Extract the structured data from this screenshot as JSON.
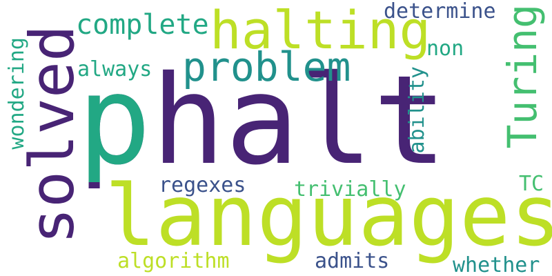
{
  "palette": {
    "dark_purple": "#482475",
    "teal": "#21918c",
    "green": "#22a884",
    "light_green": "#44bf70",
    "lime": "#bddf26",
    "slate": "#3b528b"
  },
  "words": {
    "phalt": "phalt",
    "languages": "languages",
    "solved": "solved",
    "halting": "halting",
    "problem": "problem",
    "turing": "Turing",
    "complete": "complete",
    "determine": "determine",
    "non": "non",
    "always": "always",
    "wondering": "wondering",
    "ability": "ability",
    "regexes": "regexes",
    "trivially": "trivially",
    "tc": "TC",
    "algorithm": "algorithm",
    "admits": "admits",
    "whether": "whether"
  }
}
